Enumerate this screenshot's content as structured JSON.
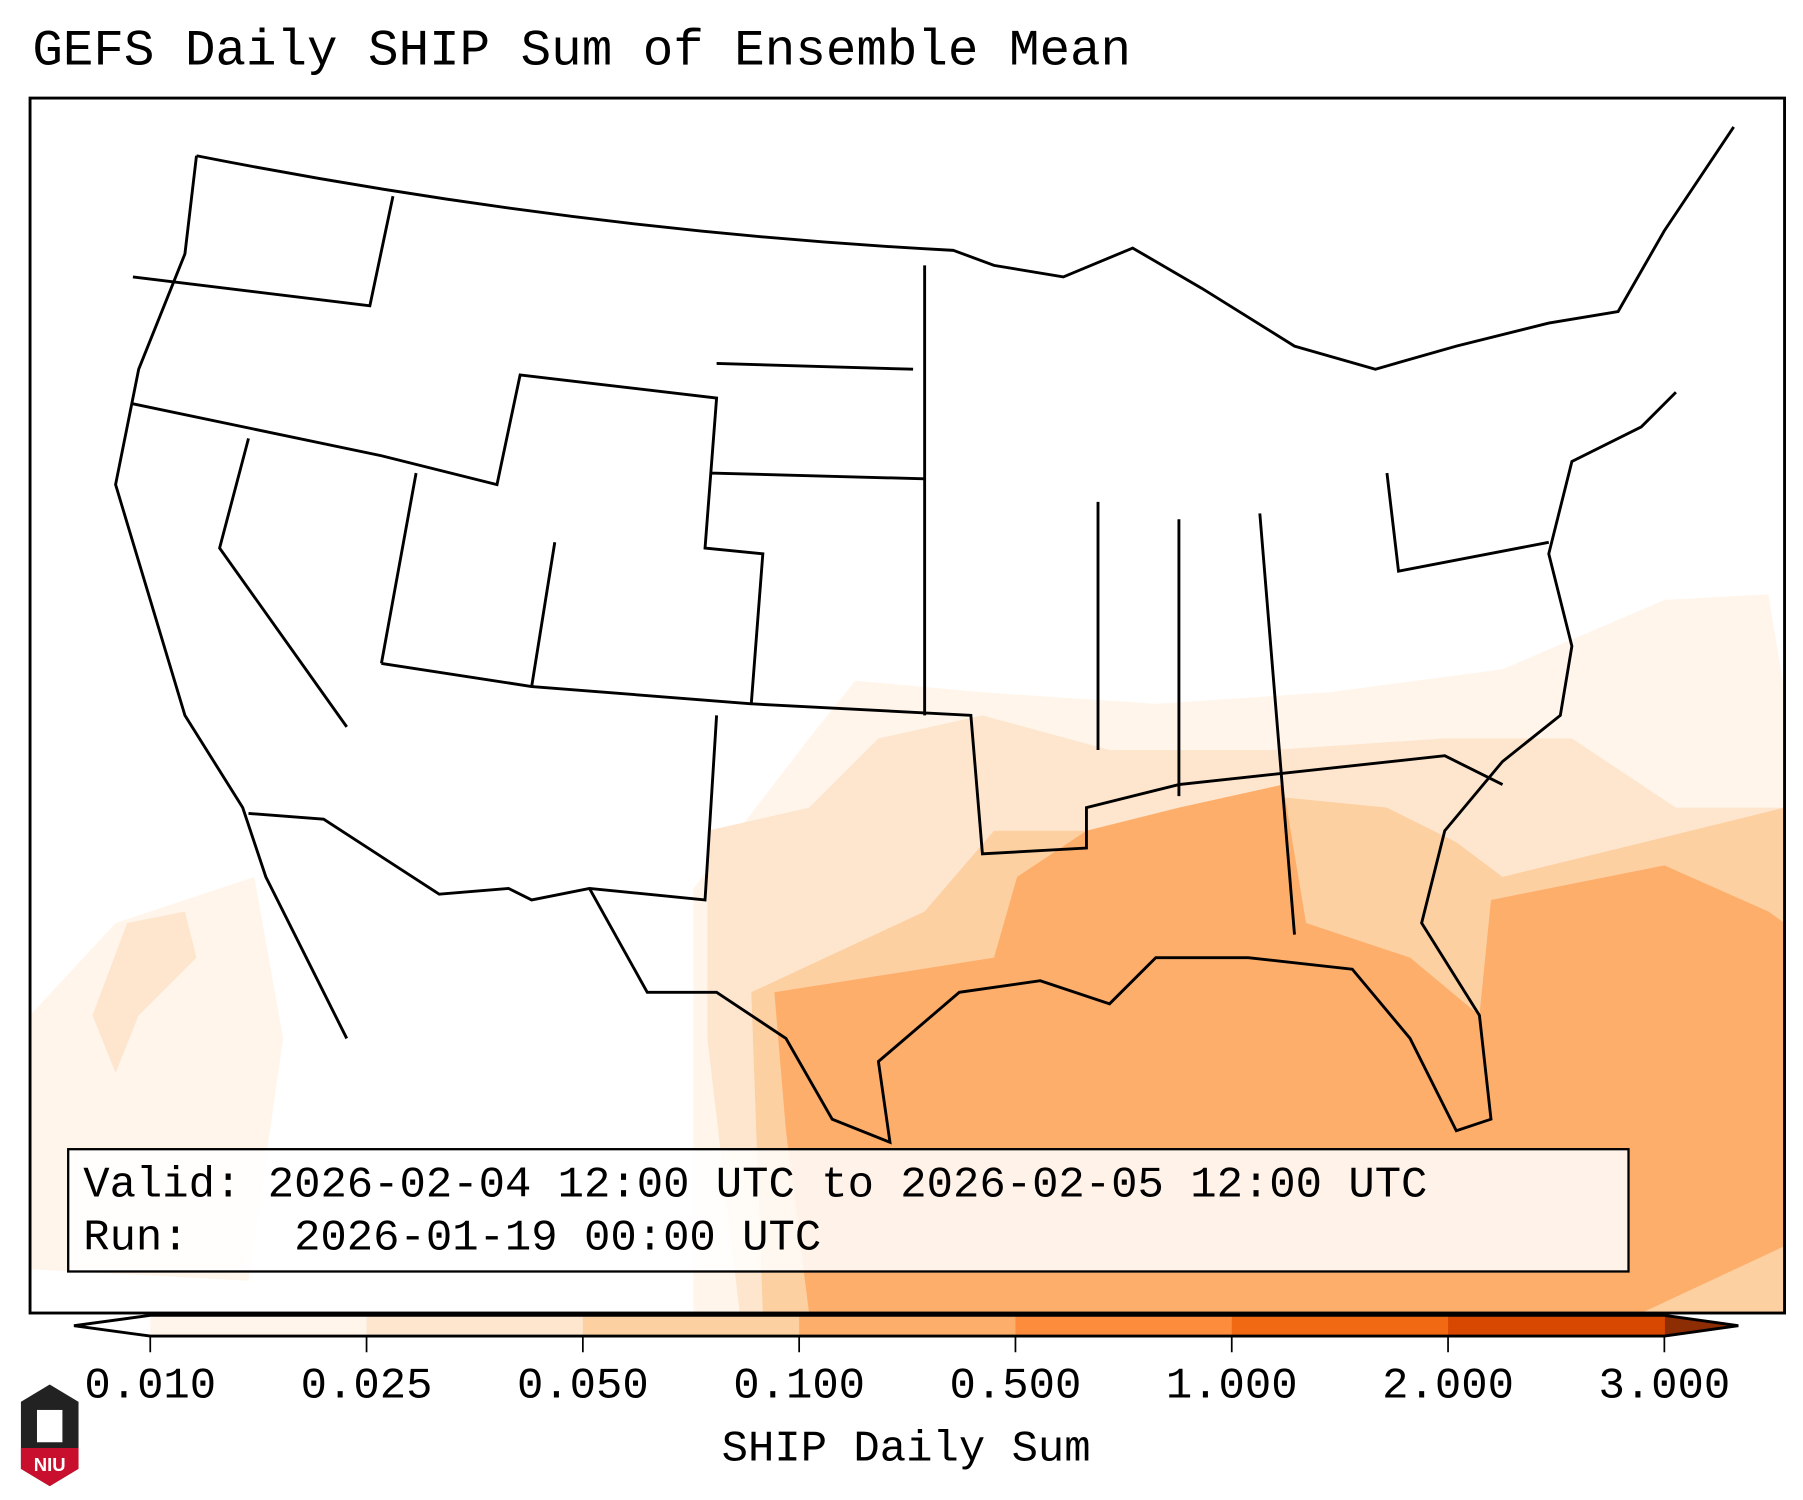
{
  "title": "GEFS Daily SHIP Sum of Ensemble Mean",
  "legend": {
    "valid_label": "Valid:",
    "valid_value": "2026-02-04 12:00 UTC to 2026-02-05 12:00 UTC",
    "run_label": "Run:",
    "run_value": "2026-01-19 00:00 UTC"
  },
  "colorbar": {
    "label": "SHIP Daily Sum",
    "ticks": [
      "0.010",
      "0.025",
      "0.050",
      "0.100",
      "0.500",
      "1.000",
      "2.000",
      "3.000"
    ],
    "colors": [
      "#fff5eb",
      "#fee6ce",
      "#fdd0a2",
      "#fdae6b",
      "#fd8d3c",
      "#f16913",
      "#d94801"
    ],
    "under_color": "#ffffff",
    "over_color": "#8c2d04"
  },
  "logo_text": "NIU"
}
